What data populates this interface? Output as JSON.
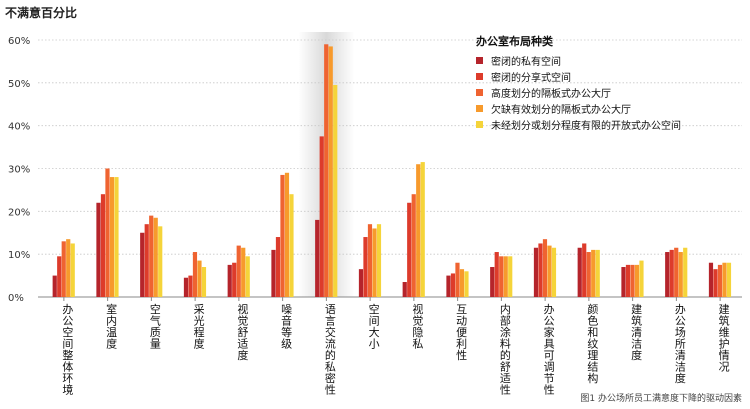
{
  "chart_data": {
    "type": "bar",
    "title": "",
    "ylabel": "不满意百分比",
    "xlabel": "",
    "ylim": [
      0,
      60
    ],
    "yticks": [
      "0%",
      "10%",
      "20%",
      "30%",
      "40%",
      "50%",
      "60%"
    ],
    "grid": true,
    "legend_position": "top-right",
    "legend_title": "办公室布局种类",
    "caption": "图1 办公场所员工满意度下降的驱动因素",
    "categories": [
      "办公空间整体环境",
      "室内温度",
      "空气质量",
      "采光程度",
      "视觉舒适度",
      "噪音等级",
      "语言交流的私密性",
      "空间大小",
      "视觉隐私",
      "互动便利性",
      "内部涂料的舒适性",
      "办公家具可调节性",
      "颜色和纹理结构",
      "建筑清洁度",
      "办公场所清洁度",
      "建筑维护情况"
    ],
    "highlight_category": "语言交流的私密性",
    "series": [
      {
        "name": "密闭的私有空间",
        "color": "#b5242b",
        "values": [
          5,
          22,
          15,
          4.5,
          7.5,
          11,
          18,
          6.5,
          3.5,
          5,
          7,
          11.5,
          11.5,
          7,
          10.5,
          8
        ]
      },
      {
        "name": "密闭的分享式空间",
        "color": "#dd3b2b",
        "values": [
          9.5,
          24,
          17,
          5,
          8,
          14,
          37.5,
          14,
          22,
          5.5,
          10.5,
          12.5,
          12.5,
          7.5,
          11,
          6.5
        ]
      },
      {
        "name": "高度划分的隔板式办公大厅",
        "color": "#ef6331",
        "values": [
          13,
          30,
          19,
          10.5,
          12,
          28.5,
          59,
          17,
          24,
          8,
          9.5,
          13.5,
          10.5,
          7.5,
          11.5,
          7.5
        ]
      },
      {
        "name": "欠缺有效划分的隔板式办公大厅",
        "color": "#f79a2c",
        "values": [
          13.5,
          28,
          18.5,
          8.5,
          11.5,
          29,
          58.5,
          16,
          31,
          6.5,
          9.5,
          12,
          11,
          7.5,
          10.5,
          8
        ]
      },
      {
        "name": "未经划分或划分程度有限的开放式办公空间",
        "color": "#f5d43a",
        "values": [
          12.5,
          28,
          16.5,
          7,
          9.5,
          24,
          49.5,
          17,
          31.5,
          6,
          9.5,
          11.5,
          11,
          8.5,
          11.5,
          8
        ]
      }
    ]
  }
}
